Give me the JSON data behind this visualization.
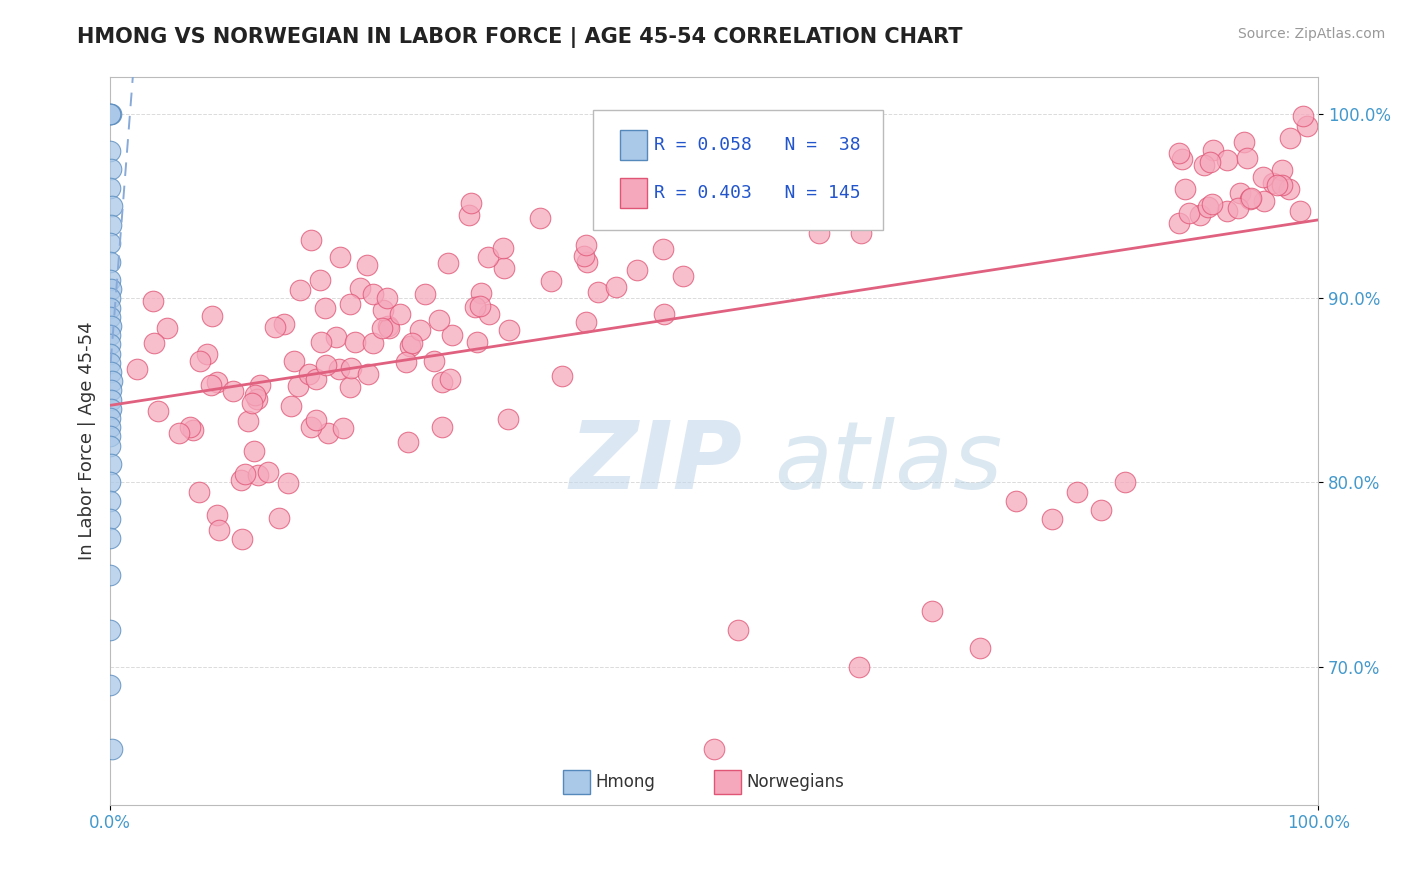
{
  "title": "HMONG VS NORWEGIAN IN LABOR FORCE | AGE 45-54 CORRELATION CHART",
  "source_text": "Source: ZipAtlas.com",
  "ylabel": "In Labor Force | Age 45-54",
  "hmong_color": "#aac8e8",
  "norwegian_color": "#f5a8bc",
  "hmong_edge_color": "#5588bb",
  "norwegian_edge_color": "#e05575",
  "trend_hmong_color": "#88aad8",
  "trend_norwegian_color": "#e06080",
  "r_hmong": 0.058,
  "r_norwegian": 0.403,
  "n_hmong": 38,
  "n_norwegian": 145,
  "watermark_zip": "ZIP",
  "watermark_atlas": "atlas",
  "grid_color": "#cccccc",
  "background_color": "#ffffff",
  "tick_color": "#4499cc",
  "ylim": [
    0.625,
    1.02
  ],
  "xlim": [
    0.0,
    1.0
  ]
}
